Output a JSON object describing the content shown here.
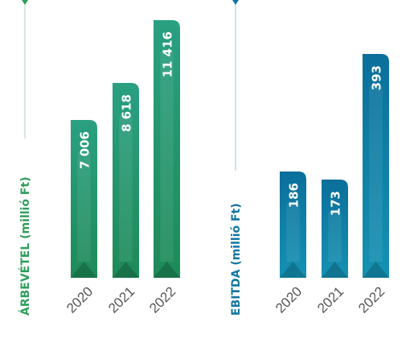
{
  "chart_data": [
    {
      "type": "bar",
      "ylabel": "ÁRBEVÉTEL (millió Ft)",
      "categories": [
        "2020",
        "2021",
        "2022"
      ],
      "values": [
        7006,
        8618,
        11416
      ],
      "value_labels": [
        "7 006",
        "8 618",
        "11 416"
      ],
      "ylim": [
        0,
        11416
      ],
      "colors": {
        "top": "#2aa082",
        "bottom": "#1e8a58",
        "accent": "#2f9e5a",
        "line": "#b9d9c8"
      }
    },
    {
      "type": "bar",
      "ylabel": "EBITDA (millió Ft)",
      "categories": [
        "2020",
        "2021",
        "2022"
      ],
      "values": [
        186,
        173,
        393
      ],
      "value_labels": [
        "186",
        "173",
        "393"
      ],
      "ylim": [
        0,
        393
      ],
      "colors": {
        "top": "#0b6f9b",
        "bottom": "#1591b2",
        "accent": "#12759f",
        "line": "#a9cfe0"
      }
    }
  ]
}
